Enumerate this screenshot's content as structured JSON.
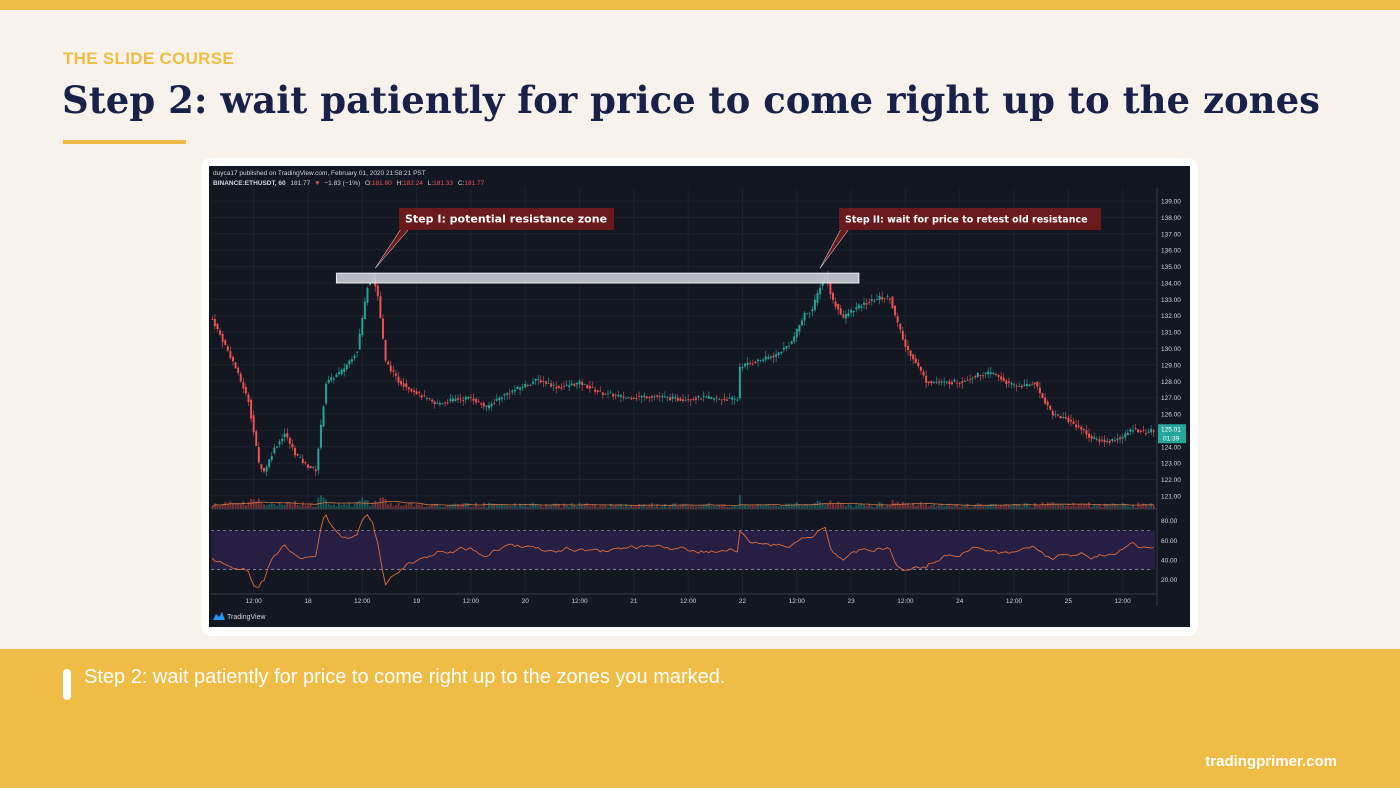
{
  "slide": {
    "eyebrow": "THE SLIDE COURSE",
    "title": "Step 2: wait patiently for price to come right up to the zones",
    "caption": "Step 2: wait patiently for price to come right up to the zones you marked.",
    "site": "tradingprimer.com",
    "accent_color": "#efbc45",
    "title_color": "#1a2149"
  },
  "chart_data": {
    "type": "candlestick",
    "header": {
      "publisher_line": "duyca17 published on TradingView.com, February 01, 2020 21:58:21 PST",
      "symbol": "BINANCE:ETHUSDT, 60",
      "last": "181.77",
      "change_arrow": "▼",
      "change": "−1.83 (−1%)",
      "open_label": "O:",
      "open": "181.80",
      "high_label": "H:",
      "high": "182.24",
      "low_label": "L:",
      "low": "181.33",
      "close_label": "C:",
      "close": "181.77"
    },
    "price_axis": {
      "ticks": [
        139,
        138,
        137,
        136,
        135,
        134,
        133,
        132,
        131,
        130,
        129,
        128,
        127,
        126,
        125,
        124,
        123,
        122,
        121
      ],
      "ylim": [
        120.2,
        139.8
      ],
      "current_price": "125.01",
      "countdown": "01:39"
    },
    "rsi_axis": {
      "ticks": [
        80,
        60,
        40,
        20
      ],
      "ylim": [
        5,
        92
      ],
      "upper_band": 70,
      "lower_band": 30
    },
    "x_axis": {
      "ticks": [
        {
          "bar": 16,
          "label": "12:00"
        },
        {
          "bar": 37,
          "label": "18"
        },
        {
          "bar": 58,
          "label": "12:00"
        },
        {
          "bar": 79,
          "label": "19"
        },
        {
          "bar": 100,
          "label": "12:00"
        },
        {
          "bar": 121,
          "label": "20"
        },
        {
          "bar": 142,
          "label": "12:00"
        },
        {
          "bar": 163,
          "label": "21"
        },
        {
          "bar": 184,
          "label": "12:00"
        },
        {
          "bar": 205,
          "label": "22"
        },
        {
          "bar": 226,
          "label": "12:00"
        },
        {
          "bar": 247,
          "label": "23"
        },
        {
          "bar": 268,
          "label": "12:00"
        },
        {
          "bar": 289,
          "label": "24"
        },
        {
          "bar": 310,
          "label": "12:00"
        },
        {
          "bar": 331,
          "label": "25"
        },
        {
          "bar": 352,
          "label": "12:00"
        }
      ]
    },
    "resistance_zone": {
      "low": 134.0,
      "high": 134.6,
      "start_bar": 48,
      "end_bar": 250
    },
    "annotations": [
      {
        "text": "Step I: potential resistance zone",
        "target_bar": 63,
        "target_price": 134.9
      },
      {
        "text": "Step II: wait for price to retest old resistance",
        "target_bar": 235,
        "target_price": 134.9
      }
    ],
    "watermark": "TradingView",
    "anchors": [
      [
        0,
        131.8
      ],
      [
        8,
        129.2
      ],
      [
        14,
        126.8
      ],
      [
        18,
        123.0
      ],
      [
        20,
        122.5
      ],
      [
        24,
        123.9
      ],
      [
        28,
        124.8
      ],
      [
        32,
        123.6
      ],
      [
        36,
        122.9
      ],
      [
        40,
        122.6
      ],
      [
        44,
        127.9
      ],
      [
        50,
        128.6
      ],
      [
        56,
        129.9
      ],
      [
        60,
        133.8
      ],
      [
        62,
        134.4
      ],
      [
        64,
        133.2
      ],
      [
        67,
        129.2
      ],
      [
        72,
        128.0
      ],
      [
        76,
        127.6
      ],
      [
        80,
        127.2
      ],
      [
        86,
        126.6
      ],
      [
        94,
        126.9
      ],
      [
        100,
        127.0
      ],
      [
        106,
        126.4
      ],
      [
        112,
        127.1
      ],
      [
        120,
        127.7
      ],
      [
        126,
        128.1
      ],
      [
        134,
        127.6
      ],
      [
        142,
        127.9
      ],
      [
        150,
        127.3
      ],
      [
        160,
        127.0
      ],
      [
        170,
        127.1
      ],
      [
        180,
        126.9
      ],
      [
        190,
        127.0
      ],
      [
        196,
        126.9
      ],
      [
        203,
        126.9
      ],
      [
        204,
        128.9
      ],
      [
        212,
        129.3
      ],
      [
        218,
        129.6
      ],
      [
        224,
        130.4
      ],
      [
        229,
        132.1
      ],
      [
        232,
        132.4
      ],
      [
        235,
        133.8
      ],
      [
        237,
        134.5
      ],
      [
        240,
        132.9
      ],
      [
        244,
        131.9
      ],
      [
        248,
        132.4
      ],
      [
        252,
        132.7
      ],
      [
        258,
        133.1
      ],
      [
        262,
        133.1
      ],
      [
        264,
        132.0
      ],
      [
        268,
        130.1
      ],
      [
        272,
        129.2
      ],
      [
        276,
        128.0
      ],
      [
        282,
        127.9
      ],
      [
        290,
        128.0
      ],
      [
        296,
        128.4
      ],
      [
        302,
        128.5
      ],
      [
        308,
        127.8
      ],
      [
        314,
        127.7
      ],
      [
        318,
        127.9
      ],
      [
        321,
        127.0
      ],
      [
        325,
        126.0
      ],
      [
        330,
        125.7
      ],
      [
        336,
        125.1
      ],
      [
        340,
        124.5
      ],
      [
        346,
        124.3
      ],
      [
        352,
        124.6
      ],
      [
        356,
        125.1
      ],
      [
        360,
        124.9
      ],
      [
        364,
        125.0
      ]
    ]
  }
}
